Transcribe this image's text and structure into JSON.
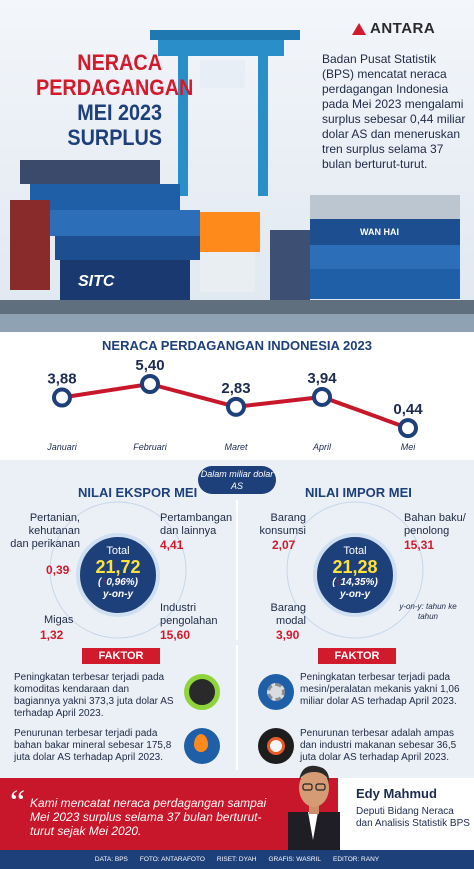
{
  "brand": {
    "name": "ANTARA"
  },
  "title": {
    "line1": "NERACA",
    "line2": "PERDAGANGAN",
    "line3": "MEI 2023",
    "line4": "SURPLUS"
  },
  "intro_text": "Badan Pusat Statistik (BPS) mencatat neraca perdagangan Indonesia pada Mei 2023 mengalami surplus sebesar 0,44 miliar dolar AS dan meneruskan tren surplus selama 37 bulan berturut-turut.",
  "photo_labels": {
    "container1": "SITC",
    "container2": "WAN HAI"
  },
  "chart_data": {
    "type": "line",
    "title": "NERACA PERDAGANGAN INDONESIA 2023",
    "categories": [
      "Januari",
      "Februari",
      "Maret",
      "April",
      "Mei"
    ],
    "values": [
      3.88,
      5.4,
      2.83,
      3.94,
      0.44
    ],
    "value_labels": [
      "3,88",
      "5,40",
      "2,83",
      "3,94",
      "0,44"
    ],
    "unit": "Dalam miliar dolar AS",
    "color": "#c8172a",
    "marker_color": "#1d3f7a",
    "grid": false,
    "ylim": [
      0,
      5.4
    ]
  },
  "export": {
    "title": "NILAI EKSPOR MEI",
    "total_label": "Total",
    "total_value": "21,72",
    "change": "0,96%",
    "change_note": "y-on-y",
    "sectors": [
      {
        "label": "Pertanian, kehutanan dan perikanan",
        "value": "0,39"
      },
      {
        "label": "Pertambangan dan lainnya",
        "value": "4,41"
      },
      {
        "label": "Migas",
        "value": "1,32"
      },
      {
        "label": "Industri pengolahan",
        "value": "15,60"
      }
    ]
  },
  "import": {
    "title": "NILAI IMPOR MEI",
    "total_label": "Total",
    "total_value": "21,28",
    "change": "14,35%",
    "change_note": "y-on-y",
    "sectors": [
      {
        "label": "Barang konsumsi",
        "value": "2,07"
      },
      {
        "label": "Bahan baku/ penolong",
        "value": "15,31"
      },
      {
        "label": "Barang modal",
        "value": "3,90"
      }
    ]
  },
  "yoy_note": "y-on-y: tahun ke tahun",
  "faktor_label": "FAKTOR",
  "faktor_export": [
    "Peningkatan terbesar terjadi pada komoditas kendaraan dan bagiannya yakni 373,3 juta dolar AS terhadap April 2023.",
    "Penurunan terbesar terjadi pada bahan bakar mineral sebesar 175,8 juta dolar AS terhadap April 2023."
  ],
  "faktor_import": [
    "Peningkatan terbesar terjadi pada mesin/peralatan mekanis yakni 1,06 miliar dolar AS terhadap April 2023.",
    "Penurunan terbesar adalah ampas dan industri makanan sebesar 36,5 juta dolar AS terhadap April 2023."
  ],
  "quote": {
    "text": "Kami mencatat neraca perdagangan sampai Mei 2023 surplus selama 37 bulan berturut-turut sejak Mei 2020.",
    "name": "Edy Mahmud",
    "role": "Deputi Bidang Neraca dan Analisis Statistik BPS"
  },
  "footer": {
    "data": "DATA: BPS",
    "foto": "FOTO: ANTARAFOTO",
    "riset": "RISET: DYAH",
    "grafis": "GRAFIS: WASRIL",
    "editor": "EDITOR: RANY"
  },
  "colors": {
    "red": "#c8172a",
    "navy": "#1d3f7a",
    "yellow": "#ffe23a"
  }
}
